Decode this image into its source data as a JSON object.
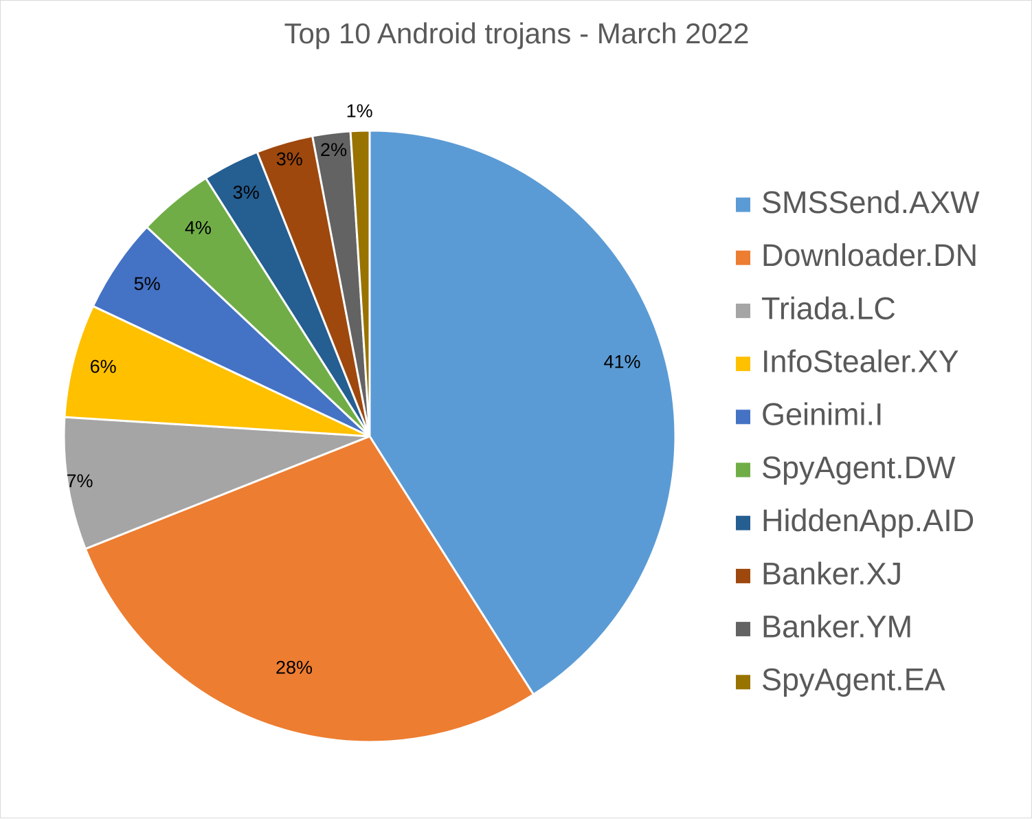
{
  "chart_data": {
    "type": "pie",
    "title": "Top 10 Android trojans - March 2022",
    "legend_position": "right",
    "categories": [
      "SMSSend.AXW",
      "Downloader.DN",
      "Triada.LC",
      "InfoStealer.XY",
      "Geinimi.I",
      "SpyAgent.DW",
      "HiddenApp.AID",
      "Banker.XJ",
      "Banker.YM",
      "SpyAgent.EA"
    ],
    "values": [
      41,
      28,
      7,
      6,
      5,
      4,
      3,
      3,
      2,
      1
    ],
    "data_labels": [
      "41%",
      "28%",
      "7%",
      "6%",
      "5%",
      "4%",
      "3%",
      "3%",
      "2%",
      "1%"
    ],
    "colors": [
      "#5b9bd5",
      "#ed7d31",
      "#a5a5a5",
      "#ffc000",
      "#4472c4",
      "#70ad47",
      "#255e91",
      "#9e480e",
      "#636363",
      "#997300"
    ]
  }
}
